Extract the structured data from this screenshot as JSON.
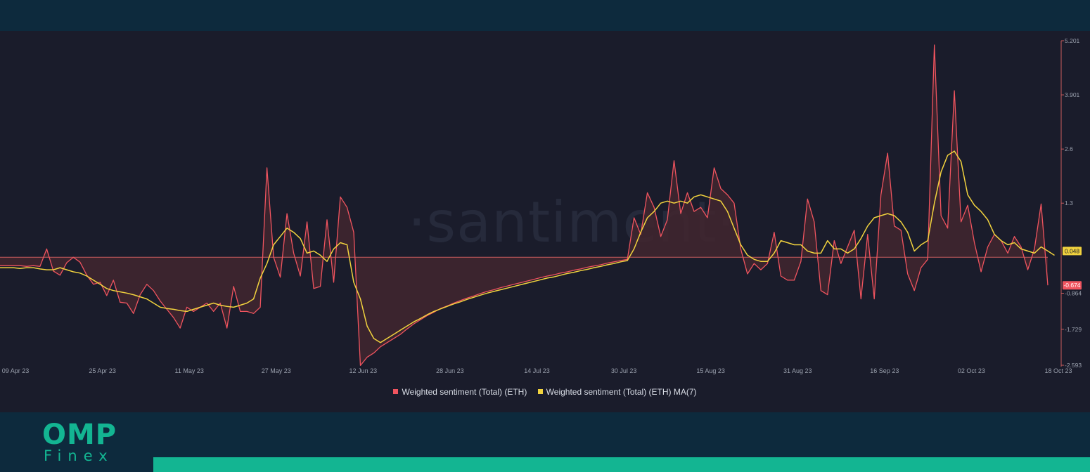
{
  "watermark": "·santiment·",
  "brand": {
    "name": "OMP",
    "sub": "Finex",
    "color": "#13b592"
  },
  "colors": {
    "background": "#1a1c2b",
    "sentiment": "#f0545f",
    "ma": "#f2d33e",
    "zero_line": "#c95c5e",
    "area_fill": "#42262f"
  },
  "chart_data": {
    "type": "line",
    "title": "",
    "xlabel": "",
    "ylabel": "",
    "x_tick_labels": [
      "09 Apr 23",
      "25 Apr 23",
      "11 May 23",
      "27 May 23",
      "12 Jun 23",
      "28 Jun 23",
      "14 Jul 23",
      "30 Jul 23",
      "15 Aug 23",
      "31 Aug 23",
      "16 Sep 23",
      "02 Oct 23",
      "18 Oct 23"
    ],
    "y_ticks": [
      5.201,
      3.901,
      2.6,
      1.3,
      -0.864,
      -1.729,
      -2.593
    ],
    "y_tick_labels": [
      "5.201",
      "3.901",
      "2.6",
      "1.3",
      "-0.864",
      "-1.729",
      "-2.593"
    ],
    "ylim": [
      -2.593,
      5.201
    ],
    "last_value_labels": {
      "ma": "0.048",
      "sentiment": "-0.674"
    },
    "legend_position": "bottom",
    "grid": false,
    "series": [
      {
        "name": "Weighted sentiment (Total) (ETH)",
        "color": "#f0545f",
        "values": [
          -0.2,
          -0.2,
          -0.2,
          -0.2,
          -0.22,
          -0.2,
          -0.22,
          0.2,
          -0.33,
          -0.43,
          -0.13,
          0.0,
          -0.12,
          -0.43,
          -0.65,
          -0.6,
          -0.92,
          -0.55,
          -1.08,
          -1.1,
          -1.35,
          -0.9,
          -0.65,
          -0.8,
          -1.05,
          -1.25,
          -1.45,
          -1.7,
          -1.2,
          -1.3,
          -1.2,
          -1.1,
          -1.3,
          -1.1,
          -1.7,
          -0.7,
          -1.3,
          -1.3,
          -1.35,
          -1.2,
          2.15,
          0.0,
          -0.48,
          1.05,
          0.1,
          -0.45,
          0.85,
          -0.75,
          -0.7,
          0.9,
          -0.6,
          1.45,
          1.2,
          0.6,
          -2.6,
          -2.4,
          -2.3,
          -2.15,
          -2.05,
          -1.95,
          -1.85,
          -1.72,
          -1.6,
          -1.5,
          -1.4,
          -1.32,
          -1.23,
          -1.17,
          -1.1,
          -1.04,
          -0.98,
          -0.93,
          -0.87,
          -0.82,
          -0.78,
          -0.73,
          -0.69,
          -0.65,
          -0.61,
          -0.57,
          -0.53,
          -0.49,
          -0.45,
          -0.42,
          -0.38,
          -0.35,
          -0.31,
          -0.28,
          -0.24,
          -0.21,
          -0.18,
          -0.14,
          -0.11,
          -0.08,
          -0.05,
          0.95,
          0.55,
          1.55,
          1.2,
          0.5,
          0.9,
          2.32,
          1.05,
          1.55,
          1.1,
          1.2,
          0.95,
          2.15,
          1.65,
          1.5,
          1.3,
          0.2,
          -0.4,
          -0.15,
          -0.3,
          -0.15,
          0.6,
          -0.45,
          -0.55,
          -0.55,
          -0.1,
          1.4,
          0.85,
          -0.8,
          -0.9,
          0.4,
          -0.15,
          0.25,
          0.65,
          -1.0,
          0.55,
          -1.0,
          1.5,
          2.5,
          0.75,
          0.65,
          -0.4,
          -0.8,
          -0.25,
          -0.05,
          5.1,
          1.0,
          0.7,
          4.0,
          0.85,
          1.25,
          0.35,
          -0.35,
          0.25,
          0.55,
          0.4,
          0.1,
          0.5,
          0.25,
          -0.3,
          0.2,
          1.28,
          -0.674
        ]
      },
      {
        "name": "Weighted sentiment (Total) (ETH) MA(7)",
        "color": "#f2d33e",
        "values": [
          -0.25,
          -0.25,
          -0.25,
          -0.27,
          -0.25,
          -0.25,
          -0.28,
          -0.3,
          -0.3,
          -0.25,
          -0.3,
          -0.35,
          -0.38,
          -0.45,
          -0.55,
          -0.65,
          -0.75,
          -0.8,
          -0.83,
          -0.86,
          -0.9,
          -0.95,
          -1.0,
          -1.1,
          -1.2,
          -1.23,
          -1.25,
          -1.28,
          -1.3,
          -1.25,
          -1.2,
          -1.15,
          -1.1,
          -1.15,
          -1.18,
          -1.2,
          -1.15,
          -1.1,
          -1.0,
          -0.5,
          -0.15,
          0.3,
          0.5,
          0.7,
          0.6,
          0.45,
          0.1,
          0.15,
          0.05,
          -0.1,
          0.2,
          0.35,
          0.3,
          -0.6,
          -1.0,
          -1.65,
          -1.95,
          -2.05,
          -1.95,
          -1.85,
          -1.75,
          -1.65,
          -1.55,
          -1.47,
          -1.38,
          -1.3,
          -1.24,
          -1.18,
          -1.12,
          -1.07,
          -1.01,
          -0.96,
          -0.91,
          -0.86,
          -0.82,
          -0.78,
          -0.74,
          -0.7,
          -0.66,
          -0.62,
          -0.58,
          -0.54,
          -0.5,
          -0.47,
          -0.43,
          -0.39,
          -0.36,
          -0.32,
          -0.29,
          -0.25,
          -0.22,
          -0.18,
          -0.15,
          -0.11,
          -0.08,
          0.2,
          0.6,
          0.95,
          1.1,
          1.3,
          1.35,
          1.3,
          1.35,
          1.3,
          1.45,
          1.5,
          1.45,
          1.4,
          1.35,
          1.1,
          0.7,
          0.3,
          0.05,
          -0.05,
          -0.1,
          -0.1,
          0.1,
          0.4,
          0.35,
          0.3,
          0.3,
          0.15,
          0.1,
          0.1,
          0.4,
          0.2,
          0.2,
          0.1,
          0.2,
          0.45,
          0.75,
          0.95,
          1.0,
          1.05,
          1.0,
          0.85,
          0.6,
          0.15,
          0.3,
          0.4,
          1.3,
          2.05,
          2.45,
          2.55,
          2.3,
          1.5,
          1.25,
          1.1,
          0.9,
          0.55,
          0.4,
          0.3,
          0.35,
          0.2,
          0.15,
          0.1,
          0.25,
          0.15,
          0.048
        ]
      }
    ]
  }
}
